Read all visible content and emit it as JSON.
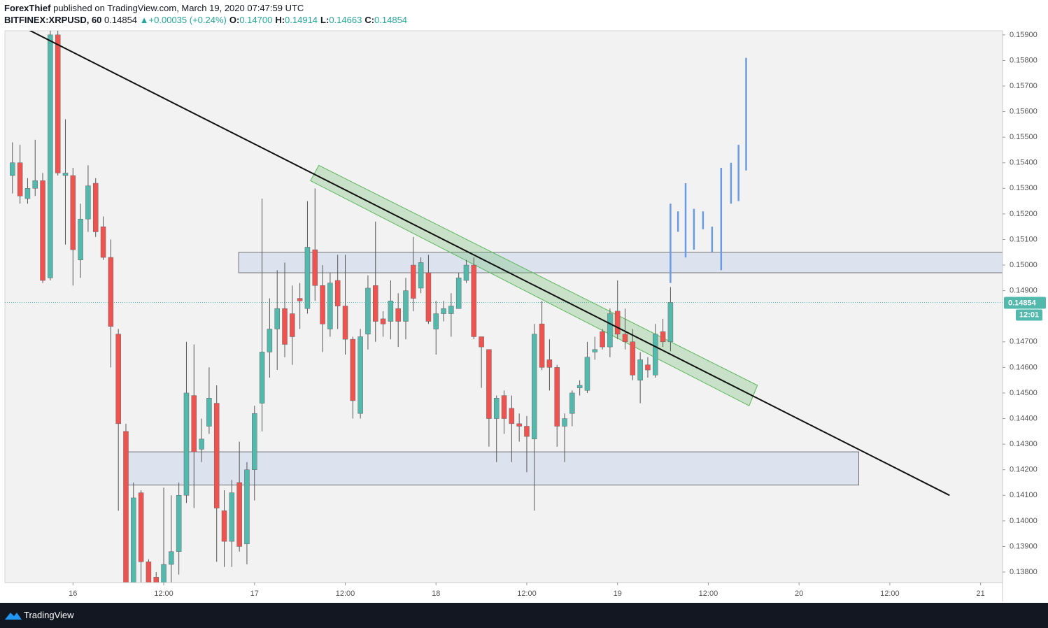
{
  "header": {
    "author": "ForexThief",
    "published": "published on TradingView.com, March 19, 2020 07:47:59 UTC",
    "symbol": "BITFINEX:XRPUSD, 60",
    "price": "0.14854",
    "arrow": "▲",
    "change": "+0.00035 (+0.24%)",
    "ohlc": [
      {
        "key": "O:",
        "value": "0.14700"
      },
      {
        "key": "H:",
        "value": "0.14914"
      },
      {
        "key": "L:",
        "value": "0.14663"
      },
      {
        "key": "C:",
        "value": "0.14854"
      }
    ]
  },
  "footer": {
    "brand": "TradingView"
  },
  "chart_data": {
    "type": "candlestick",
    "up_color": "#53b9ac",
    "down_color": "#ef5350",
    "xlim": [
      -9,
      122.9
    ],
    "ylim": [
      0.13759,
      0.15916
    ],
    "grid": false,
    "xticks": [
      {
        "value": 0,
        "label": "16"
      },
      {
        "value": 12,
        "label": "12:00"
      },
      {
        "value": 24,
        "label": "17"
      },
      {
        "value": 36,
        "label": "12:00"
      },
      {
        "value": 48,
        "label": "18"
      },
      {
        "value": 60,
        "label": "12:00"
      },
      {
        "value": 72,
        "label": "19"
      },
      {
        "value": 84,
        "label": "12:00"
      },
      {
        "value": 96,
        "label": "20"
      },
      {
        "value": 108,
        "label": "12:00"
      },
      {
        "value": 120,
        "label": "21"
      }
    ],
    "yticks": [
      {
        "value": 0.159,
        "label": "0.15900"
      },
      {
        "value": 0.158,
        "label": "0.15800"
      },
      {
        "value": 0.157,
        "label": "0.15700"
      },
      {
        "value": 0.156,
        "label": "0.15600"
      },
      {
        "value": 0.155,
        "label": "0.15500"
      },
      {
        "value": 0.154,
        "label": "0.15400"
      },
      {
        "value": 0.153,
        "label": "0.15300"
      },
      {
        "value": 0.152,
        "label": "0.15200"
      },
      {
        "value": 0.151,
        "label": "0.15100"
      },
      {
        "value": 0.15,
        "label": "0.15000"
      },
      {
        "value": 0.149,
        "label": "0.14900"
      },
      {
        "value": 0.147,
        "label": "0.14700"
      },
      {
        "value": 0.146,
        "label": "0.14600"
      },
      {
        "value": 0.145,
        "label": "0.14500"
      },
      {
        "value": 0.144,
        "label": "0.14400"
      },
      {
        "value": 0.143,
        "label": "0.14300"
      },
      {
        "value": 0.142,
        "label": "0.14200"
      },
      {
        "value": 0.141,
        "label": "0.14100"
      },
      {
        "value": 0.14,
        "label": "0.14000"
      },
      {
        "value": 0.139,
        "label": "0.13900"
      },
      {
        "value": 0.138,
        "label": "0.13800"
      }
    ],
    "last_price": {
      "value": 0.14854,
      "label": "0.14854",
      "countdown": "12:01",
      "color": "#53b9ac"
    },
    "x": [
      -8,
      -7,
      -6,
      -5,
      -4,
      -3,
      -2,
      -1,
      0,
      1,
      2,
      3,
      4,
      5,
      6,
      7,
      8,
      9,
      10,
      11,
      12,
      13,
      14,
      15,
      16,
      17,
      18,
      19,
      20,
      21,
      22,
      23,
      24,
      25,
      26,
      27,
      28,
      29,
      30,
      31,
      32,
      33,
      34,
      35,
      36,
      37,
      38,
      39,
      40,
      41,
      42,
      43,
      44,
      45,
      46,
      47,
      48,
      49,
      50,
      51,
      52,
      53,
      54,
      55,
      56,
      57,
      58,
      59,
      60,
      61,
      62,
      63,
      64,
      65,
      66,
      67,
      68,
      69,
      70,
      71,
      72,
      73,
      74,
      75,
      76,
      77,
      78,
      79
    ],
    "open": [
      0.1535,
      0.154,
      0.1526,
      0.153,
      0.1533,
      0.1495,
      0.159,
      0.1535,
      0.1535,
      0.1502,
      0.1518,
      0.1532,
      0.1515,
      0.1503,
      0.1473,
      0.1435,
      0.1376,
      0.1411,
      0.1384,
      0.1378,
      0.1376,
      0.1383,
      0.1388,
      0.141,
      0.1449,
      0.1428,
      0.1437,
      0.1446,
      0.1404,
      0.1392,
      0.1415,
      0.1391,
      0.142,
      0.1446,
      0.1466,
      0.1475,
      0.1483,
      0.1481,
      0.1487,
      0.1483,
      0.1506,
      0.1492,
      0.1475,
      0.1494,
      0.1484,
      0.1471,
      0.1442,
      0.1473,
      0.1492,
      0.1479,
      0.1478,
      0.1483,
      0.1478,
      0.15,
      0.1491,
      0.1497,
      0.1475,
      0.1481,
      0.1481,
      0.1483,
      0.1494,
      0.15,
      0.1472,
      0.1467,
      0.144,
      0.1449,
      0.1444,
      0.1438,
      0.1437,
      0.1432,
      0.1477,
      0.1463,
      0.146,
      0.1437,
      0.1442,
      0.1452,
      0.1451,
      0.1466,
      0.1474,
      0.1468,
      0.1482,
      0.1473,
      0.147,
      0.1455,
      0.1461,
      0.1457,
      0.1474,
      0.147
    ],
    "high": [
      0.1548,
      0.1547,
      0.1534,
      0.1549,
      0.1536,
      0.1593,
      0.1593,
      0.1557,
      0.1538,
      0.1524,
      0.1539,
      0.1534,
      0.1519,
      0.151,
      0.1475,
      0.1438,
      0.1415,
      0.1412,
      0.1385,
      0.138,
      0.1413,
      0.141,
      0.1415,
      0.147,
      0.1469,
      0.144,
      0.146,
      0.1453,
      0.1412,
      0.1416,
      0.1431,
      0.1423,
      0.1445,
      0.1526,
      0.1487,
      0.1498,
      0.1501,
      0.1492,
      0.1493,
      0.1525,
      0.153,
      0.15,
      0.1497,
      0.1504,
      0.1504,
      0.1472,
      0.1475,
      0.1496,
      0.1517,
      0.1482,
      0.1494,
      0.1489,
      0.1495,
      0.1511,
      0.1503,
      0.1504,
      0.1486,
      0.1486,
      0.1489,
      0.1497,
      0.1502,
      0.1503,
      0.1472,
      0.1467,
      0.1449,
      0.1451,
      0.1449,
      0.1442,
      0.1441,
      0.1477,
      0.1486,
      0.1471,
      0.1461,
      0.1442,
      0.1451,
      0.1455,
      0.147,
      0.1472,
      0.1475,
      0.1483,
      0.1494,
      0.1483,
      0.1475,
      0.1466,
      0.1464,
      0.1477,
      0.1479,
      0.14914
    ],
    "low": [
      0.1528,
      0.1524,
      0.1524,
      0.1527,
      0.1493,
      0.1494,
      0.1535,
      0.1508,
      0.1492,
      0.1495,
      0.1513,
      0.1511,
      0.1502,
      0.146,
      0.1404,
      0.1375,
      0.1375,
      0.1375,
      0.1375,
      0.1375,
      0.1375,
      0.1375,
      0.1379,
      0.1407,
      0.1405,
      0.1423,
      0.1434,
      0.1384,
      0.1382,
      0.1382,
      0.1388,
      0.1383,
      0.1408,
      0.1435,
      0.1456,
      0.1459,
      0.1464,
      0.1461,
      0.1475,
      0.1481,
      0.1486,
      0.1466,
      0.1472,
      0.1475,
      0.1465,
      0.144,
      0.144,
      0.1467,
      0.147,
      0.1472,
      0.1471,
      0.1468,
      0.1471,
      0.1482,
      0.1489,
      0.1477,
      0.1465,
      0.1478,
      0.1472,
      0.1483,
      0.1493,
      0.1471,
      0.1452,
      0.1429,
      0.1423,
      0.1434,
      0.1423,
      0.1431,
      0.1419,
      0.1404,
      0.1459,
      0.1451,
      0.1429,
      0.1423,
      0.1437,
      0.1449,
      0.145,
      0.1463,
      0.1467,
      0.1464,
      0.1471,
      0.1467,
      0.1455,
      0.1446,
      0.1456,
      0.1456,
      0.1468,
      0.14663
    ],
    "close": [
      0.154,
      0.1527,
      0.153,
      0.1533,
      0.1494,
      0.159,
      0.1536,
      0.1536,
      0.1506,
      0.1518,
      0.1531,
      0.1513,
      0.1503,
      0.1476,
      0.1438,
      0.1376,
      0.1409,
      0.1384,
      0.1376,
      0.1376,
      0.1383,
      0.1388,
      0.141,
      0.145,
      0.1427,
      0.1432,
      0.1448,
      0.1405,
      0.1392,
      0.1411,
      0.139,
      0.142,
      0.1442,
      0.1466,
      0.1475,
      0.1483,
      0.1469,
      0.1472,
      0.1486,
      0.1507,
      0.1492,
      0.1477,
      0.1493,
      0.1484,
      0.1471,
      0.1447,
      0.1472,
      0.1491,
      0.1478,
      0.1477,
      0.1486,
      0.1478,
      0.149,
      0.1487,
      0.1501,
      0.1478,
      0.1481,
      0.1483,
      0.1484,
      0.1495,
      0.15,
      0.1472,
      0.1468,
      0.144,
      0.1448,
      0.144,
      0.1438,
      0.1437,
      0.1433,
      0.1473,
      0.146,
      0.146,
      0.1437,
      0.144,
      0.145,
      0.1453,
      0.1464,
      0.1467,
      0.1468,
      0.1481,
      0.1473,
      0.147,
      0.1457,
      0.1463,
      0.1459,
      0.1473,
      0.147,
      0.14854
    ],
    "projection": {
      "color": "#6a9ae0",
      "x": [
        79,
        80,
        81,
        82.1,
        83.3,
        84.5,
        85.7,
        87,
        88,
        89
      ],
      "high": [
        0.1524,
        0.1521,
        0.1532,
        0.1522,
        0.1521,
        0.1515,
        0.1538,
        0.154,
        0.1547,
        0.1581
      ],
      "low": [
        0.1493,
        0.1513,
        0.1503,
        0.1506,
        0.1514,
        0.1505,
        0.1498,
        0.1524,
        0.1525,
        0.1537
      ]
    },
    "trendline": {
      "color": "#111111",
      "x": [
        -5.9,
        115.9
      ],
      "y": [
        0.1592,
        0.141
      ]
    },
    "channel": {
      "color": "#5cb85c",
      "x": [
        31.4,
        32.5,
        90.5,
        89.4
      ],
      "y": [
        0.1533,
        0.1539,
        0.1453,
        0.1445
      ]
    },
    "zones": [
      {
        "x": [
          21.9,
          122.9
        ],
        "y": [
          0.1497,
          0.1505
        ]
      },
      {
        "x": [
          6.8,
          103.9
        ],
        "y": [
          0.1414,
          0.1427
        ]
      }
    ]
  }
}
